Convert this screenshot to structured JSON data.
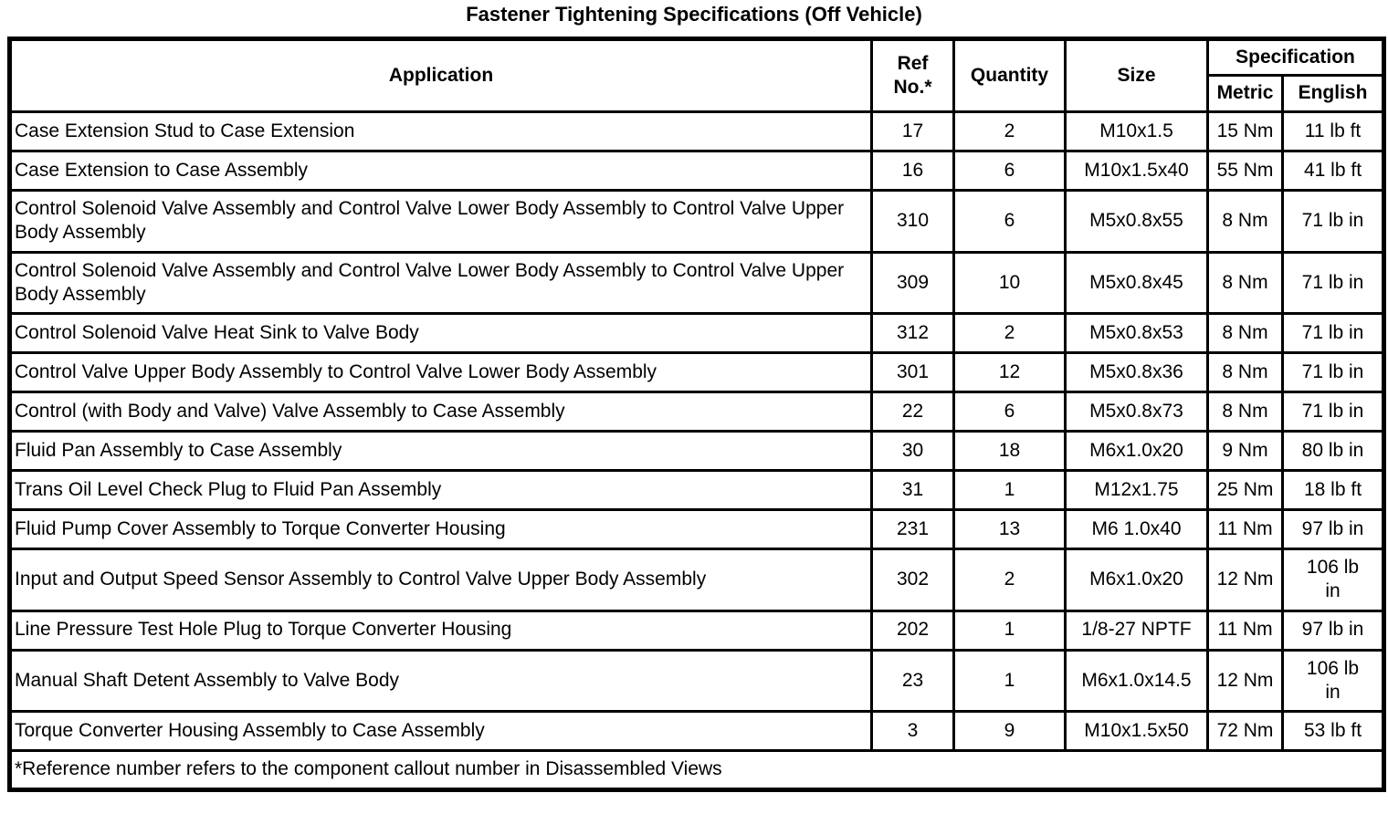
{
  "title": "Fastener Tightening Specifications (Off Vehicle)",
  "table": {
    "headers": {
      "application": "Application",
      "ref_no": "Ref\nNo.*",
      "quantity": "Quantity",
      "size": "Size",
      "specification": "Specification",
      "metric": "Metric",
      "english": "English"
    },
    "rows": [
      {
        "application": "Case Extension Stud to Case Extension",
        "ref": "17",
        "quantity": "2",
        "size": "M10x1.5",
        "metric": "15 Nm",
        "english": "11 lb ft"
      },
      {
        "application": "Case Extension to Case Assembly",
        "ref": "16",
        "quantity": "6",
        "size": "M10x1.5x40",
        "metric": "55 Nm",
        "english": "41 lb ft"
      },
      {
        "application": "Control Solenoid Valve Assembly and Control Valve Lower Body Assembly to Control Valve Upper Body Assembly",
        "ref": "310",
        "quantity": "6",
        "size": "M5x0.8x55",
        "metric": "8 Nm",
        "english": "71 lb in"
      },
      {
        "application": "Control Solenoid Valve Assembly and Control Valve Lower Body Assembly to Control Valve Upper Body Assembly",
        "ref": "309",
        "quantity": "10",
        "size": "M5x0.8x45",
        "metric": "8 Nm",
        "english": "71 lb in"
      },
      {
        "application": "Control Solenoid Valve Heat Sink to Valve Body",
        "ref": "312",
        "quantity": "2",
        "size": "M5x0.8x53",
        "metric": "8 Nm",
        "english": "71 lb in"
      },
      {
        "application": "Control Valve Upper Body Assembly to Control Valve Lower Body Assembly",
        "ref": "301",
        "quantity": "12",
        "size": "M5x0.8x36",
        "metric": "8 Nm",
        "english": "71 lb in"
      },
      {
        "application": "Control (with Body and Valve) Valve Assembly to Case Assembly",
        "ref": "22",
        "quantity": "6",
        "size": "M5x0.8x73",
        "metric": "8 Nm",
        "english": "71 lb in"
      },
      {
        "application": "Fluid Pan Assembly to Case Assembly",
        "ref": "30",
        "quantity": "18",
        "size": "M6x1.0x20",
        "metric": "9 Nm",
        "english": "80 lb in"
      },
      {
        "application": "Trans Oil Level Check Plug to Fluid Pan Assembly",
        "ref": "31",
        "quantity": "1",
        "size": "M12x1.75",
        "metric": "25 Nm",
        "english": "18 lb ft"
      },
      {
        "application": "Fluid Pump Cover Assembly to Torque Converter Housing",
        "ref": "231",
        "quantity": "13",
        "size": "M6 1.0x40",
        "metric": "11 Nm",
        "english": "97 lb in"
      },
      {
        "application": "Input and Output Speed Sensor Assembly to Control Valve Upper Body Assembly",
        "ref": "302",
        "quantity": "2",
        "size": "M6x1.0x20",
        "metric": "12 Nm",
        "english": "106 lb\nin"
      },
      {
        "application": "Line Pressure Test Hole Plug to Torque Converter Housing",
        "ref": "202",
        "quantity": "1",
        "size": "1/8-27 NPTF",
        "metric": "11 Nm",
        "english": "97 lb in"
      },
      {
        "application": "Manual Shaft Detent Assembly to Valve Body",
        "ref": "23",
        "quantity": "1",
        "size": "M6x1.0x14.5",
        "metric": "12 Nm",
        "english": "106 lb\nin"
      },
      {
        "application": "Torque Converter Housing Assembly to Case Assembly",
        "ref": "3",
        "quantity": "9",
        "size": "M10x1.5x50",
        "metric": "72 Nm",
        "english": "53 lb ft"
      }
    ],
    "footnote": "*Reference number refers to the component callout number in Disassembled Views"
  },
  "colors": {
    "text": "#000000",
    "border": "#000000",
    "background": "#ffffff"
  }
}
